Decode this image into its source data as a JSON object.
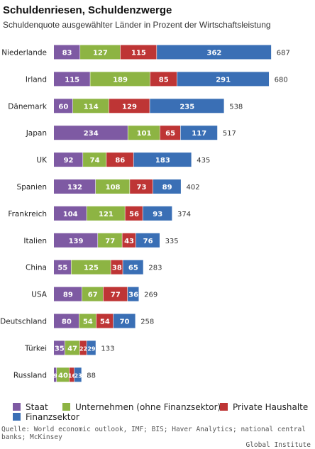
{
  "title": "Schuldenriesen, Schuldenzwerge",
  "subtitle": "Schuldenquote ausgewählter Länder in Prozent der Wirtschaftsleistung",
  "source_line1": "Quelle: World economic outlook, IMF; BIS; Haver Analytics; national central banks; McKinsey",
  "source_line2": "Global Institute",
  "colors": {
    "Staat": "#7e5aa3",
    "Unternehmen (ohne Finanzsektor)": "#8db443",
    "Private Haushalte": "#be3535",
    "Finanzsektor": "#3a6fb5"
  },
  "chart_data": {
    "type": "bar",
    "orientation": "horizontal",
    "stacked": true,
    "categories": [
      "Niederlande",
      "Irland",
      "Dänemark",
      "Japan",
      "UK",
      "Spanien",
      "Frankreich",
      "Italien",
      "China",
      "USA",
      "Deutschland",
      "Türkei",
      "Russland"
    ],
    "series": [
      {
        "name": "Staat",
        "values": [
          83,
          115,
          60,
          234,
          92,
          132,
          104,
          139,
          55,
          89,
          80,
          35,
          9
        ]
      },
      {
        "name": "Unternehmen (ohne Finanzsektor)",
        "values": [
          127,
          189,
          114,
          101,
          74,
          108,
          121,
          77,
          125,
          67,
          54,
          47,
          40
        ]
      },
      {
        "name": "Private Haushalte",
        "values": [
          115,
          85,
          129,
          65,
          86,
          73,
          56,
          43,
          38,
          77,
          54,
          22,
          16
        ]
      },
      {
        "name": "Finanzsektor",
        "values": [
          362,
          291,
          235,
          117,
          183,
          89,
          93,
          76,
          65,
          36,
          70,
          29,
          23
        ]
      }
    ],
    "totals": [
      687,
      680,
      538,
      517,
      435,
      402,
      374,
      335,
      283,
      269,
      258,
      133,
      88
    ],
    "xlim": [
      0,
      700
    ],
    "legend_position": "bottom",
    "grid": false
  }
}
